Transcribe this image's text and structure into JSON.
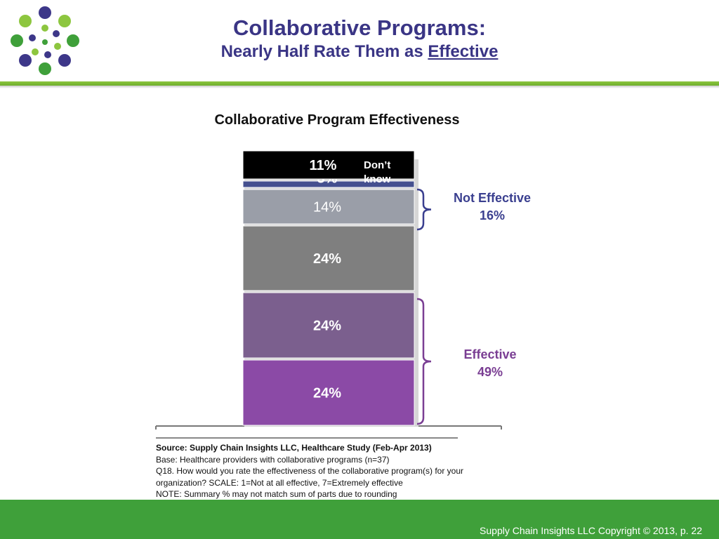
{
  "title": {
    "line1": "Collaborative Programs:",
    "line2_prefix": "Nearly Half Rate Them as ",
    "line2_emphasis": "Effective"
  },
  "chart_data": {
    "type": "bar",
    "title": "Collaborative Program Effectiveness",
    "stacked": true,
    "categories": [
      ""
    ],
    "series": [
      {
        "name": "",
        "value": 24,
        "label": "24%",
        "color": "#8b4aa6"
      },
      {
        "name": "",
        "value": 24,
        "label": "24%",
        "color": "#7b5f8e"
      },
      {
        "name": "",
        "value": 24,
        "label": "24%",
        "color": "#7f7f7f"
      },
      {
        "name": "",
        "value": 14,
        "label": "14%",
        "color": "#9a9ea8"
      },
      {
        "name": "",
        "value": 3,
        "label": "3%",
        "color": "#45508f"
      },
      {
        "name": "Don’t know",
        "value": 11,
        "label": "11%",
        "color": "#000000"
      }
    ],
    "annotations": [
      {
        "label": "Not Effective",
        "value": "16%",
        "color": "#3a3f8f"
      },
      {
        "label": "Effective",
        "value": "49%",
        "color": "#7a3e93"
      }
    ]
  },
  "source": {
    "line1": "Source:  Supply Chain Insights LLC, Healthcare Study (Feb-Apr 2013)",
    "line2": "Base:  Healthcare providers with collaborative programs (n=37)",
    "line3": "Q18. How would you rate the effectiveness of the collaborative program(s) for your",
    "line4": "organization? SCALE:  1=Not at all effective, 7=Extremely effective",
    "line5": "NOTE:  Summary % may not match sum of parts due to rounding"
  },
  "footer": "Supply Chain Insights LLC Copyright © 2013, p. 22"
}
